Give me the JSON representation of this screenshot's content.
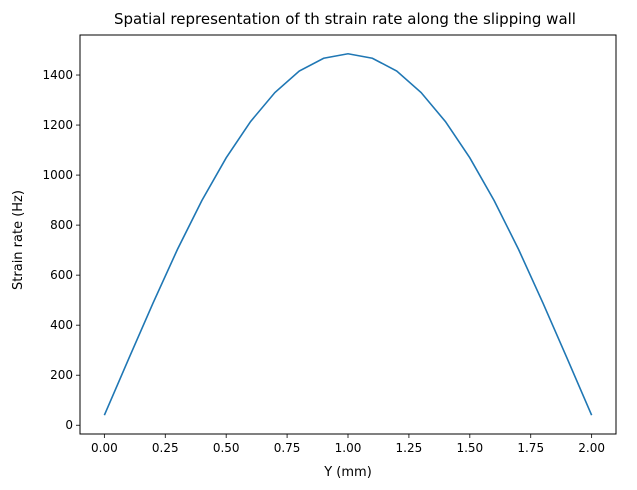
{
  "chart_data": {
    "type": "line",
    "title": "Spatial representation of th strain rate along the slipping wall",
    "xlabel": "Y (mm)",
    "ylabel": "Strain rate (Hz)",
    "xlim": [
      -0.1,
      2.1
    ],
    "ylim": [
      -35,
      1560
    ],
    "xticks": [
      0.0,
      0.25,
      0.5,
      0.75,
      1.0,
      1.25,
      1.5,
      1.75,
      2.0
    ],
    "xtick_labels": [
      "0.00",
      "0.25",
      "0.50",
      "0.75",
      "1.00",
      "1.25",
      "1.50",
      "1.75",
      "2.00"
    ],
    "yticks": [
      0,
      200,
      400,
      600,
      800,
      1000,
      1200,
      1400
    ],
    "ytick_labels": [
      "0",
      "200",
      "400",
      "600",
      "800",
      "1000",
      "1200",
      "1400"
    ],
    "grid": false,
    "series": [
      {
        "color": "#1f77b4",
        "x": [
          0.0,
          0.1,
          0.2,
          0.3,
          0.4,
          0.5,
          0.6,
          0.7,
          0.8,
          0.9,
          1.0,
          1.1,
          1.2,
          1.3,
          1.4,
          1.5,
          1.6,
          1.7,
          1.8,
          1.9,
          2.0
        ],
        "y": [
          40,
          266,
          489,
          703,
          898,
          1069,
          1214,
          1330,
          1416,
          1467,
          1485,
          1467,
          1416,
          1330,
          1214,
          1069,
          898,
          703,
          489,
          266,
          40
        ]
      }
    ]
  }
}
